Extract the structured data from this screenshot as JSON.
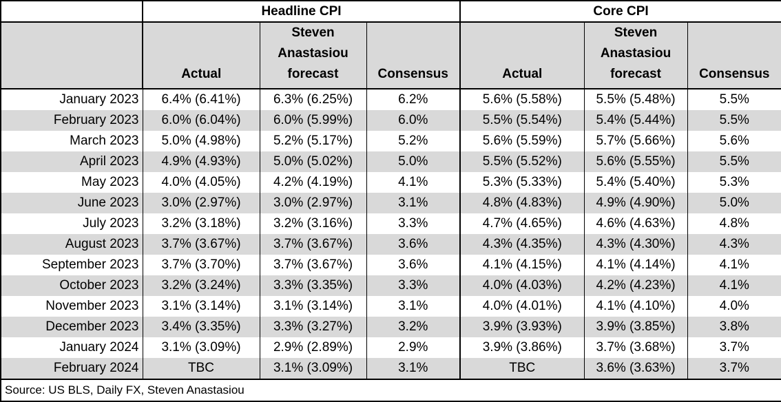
{
  "chart_data": {
    "type": "table",
    "column_groups": {
      "headline": "Headline CPI",
      "core": "Core CPI"
    },
    "sub_headers": {
      "actual": "Actual",
      "forecast": "Steven Anastasiou forecast",
      "consensus": "Consensus"
    },
    "rows": [
      {
        "month": "January 2023",
        "headline_actual": "6.4% (6.41%)",
        "headline_forecast": "6.3% (6.25%)",
        "headline_consensus": "6.2%",
        "core_actual": "5.6% (5.58%)",
        "core_forecast": "5.5% (5.48%)",
        "core_consensus": "5.5%"
      },
      {
        "month": "February 2023",
        "headline_actual": "6.0% (6.04%)",
        "headline_forecast": "6.0% (5.99%)",
        "headline_consensus": "6.0%",
        "core_actual": "5.5% (5.54%)",
        "core_forecast": "5.4% (5.44%)",
        "core_consensus": "5.5%"
      },
      {
        "month": "March 2023",
        "headline_actual": "5.0% (4.98%)",
        "headline_forecast": "5.2% (5.17%)",
        "headline_consensus": "5.2%",
        "core_actual": "5.6% (5.59%)",
        "core_forecast": "5.7% (5.66%)",
        "core_consensus": "5.6%"
      },
      {
        "month": "April 2023",
        "headline_actual": "4.9% (4.93%)",
        "headline_forecast": "5.0% (5.02%)",
        "headline_consensus": "5.0%",
        "core_actual": "5.5% (5.52%)",
        "core_forecast": "5.6% (5.55%)",
        "core_consensus": "5.5%"
      },
      {
        "month": "May 2023",
        "headline_actual": "4.0% (4.05%)",
        "headline_forecast": "4.2% (4.19%)",
        "headline_consensus": "4.1%",
        "core_actual": "5.3% (5.33%)",
        "core_forecast": "5.4% (5.40%)",
        "core_consensus": "5.3%"
      },
      {
        "month": "June 2023",
        "headline_actual": "3.0% (2.97%)",
        "headline_forecast": "3.0% (2.97%)",
        "headline_consensus": "3.1%",
        "core_actual": "4.8% (4.83%)",
        "core_forecast": "4.9% (4.90%)",
        "core_consensus": "5.0%"
      },
      {
        "month": "July 2023",
        "headline_actual": "3.2% (3.18%)",
        "headline_forecast": "3.2% (3.16%)",
        "headline_consensus": "3.3%",
        "core_actual": "4.7% (4.65%)",
        "core_forecast": "4.6% (4.63%)",
        "core_consensus": "4.8%"
      },
      {
        "month": "August 2023",
        "headline_actual": "3.7% (3.67%)",
        "headline_forecast": "3.7% (3.67%)",
        "headline_consensus": "3.6%",
        "core_actual": "4.3% (4.35%)",
        "core_forecast": "4.3% (4.30%)",
        "core_consensus": "4.3%"
      },
      {
        "month": "September 2023",
        "headline_actual": "3.7% (3.70%)",
        "headline_forecast": "3.7% (3.67%)",
        "headline_consensus": "3.6%",
        "core_actual": "4.1% (4.15%)",
        "core_forecast": "4.1% (4.14%)",
        "core_consensus": "4.1%"
      },
      {
        "month": "October 2023",
        "headline_actual": "3.2% (3.24%)",
        "headline_forecast": "3.3% (3.35%)",
        "headline_consensus": "3.3%",
        "core_actual": "4.0% (4.03%)",
        "core_forecast": "4.2% (4.23%)",
        "core_consensus": "4.1%"
      },
      {
        "month": "November 2023",
        "headline_actual": "3.1% (3.14%)",
        "headline_forecast": "3.1% (3.14%)",
        "headline_consensus": "3.1%",
        "core_actual": "4.0% (4.01%)",
        "core_forecast": "4.1% (4.10%)",
        "core_consensus": "4.0%"
      },
      {
        "month": "December 2023",
        "headline_actual": "3.4% (3.35%)",
        "headline_forecast": "3.3% (3.27%)",
        "headline_consensus": "3.2%",
        "core_actual": "3.9% (3.93%)",
        "core_forecast": "3.9% (3.85%)",
        "core_consensus": "3.8%"
      },
      {
        "month": "January 2024",
        "headline_actual": "3.1% (3.09%)",
        "headline_forecast": "2.9% (2.89%)",
        "headline_consensus": "2.9%",
        "core_actual": "3.9% (3.86%)",
        "core_forecast": "3.7% (3.68%)",
        "core_consensus": "3.7%"
      },
      {
        "month": "February 2024",
        "headline_actual": "TBC",
        "headline_forecast": "3.1% (3.09%)",
        "headline_consensus": "3.1%",
        "core_actual": "TBC",
        "core_forecast": "3.6% (3.63%)",
        "core_consensus": "3.7%"
      }
    ],
    "source": "Source: US BLS, Daily FX, Steven Anastasiou",
    "layout": {
      "stripe_color": "#d9d9d9",
      "header_fill": "#d9d9d9",
      "border_color": "#000000",
      "grid": "vertical-only"
    }
  }
}
